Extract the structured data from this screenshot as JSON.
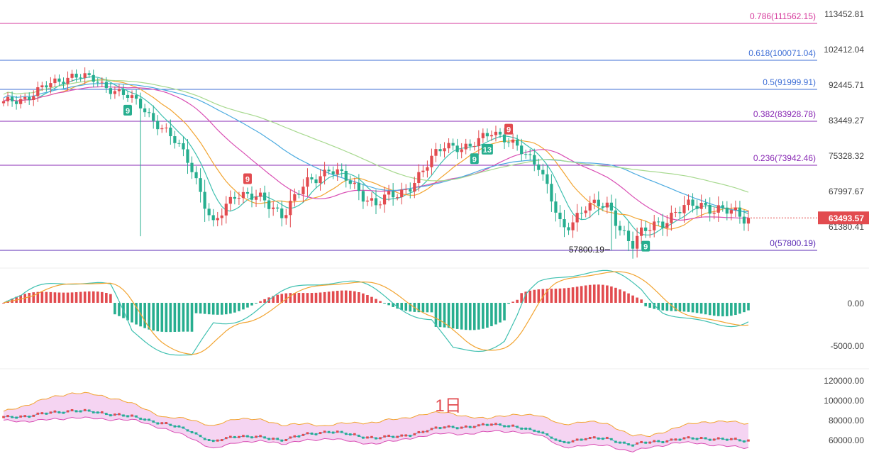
{
  "chart_data": [
    {
      "type": "candlestick",
      "panel": "price",
      "y_axis_ticks": [
        "113452.81",
        "102412.04",
        "92445.71",
        "83449.27",
        "75328.32",
        "67997.67",
        "61380.41"
      ],
      "current_price": "63493.57",
      "fib_levels": [
        {
          "label": "0.786(111562.15)",
          "value": 111562.15,
          "color": "#d6399c"
        },
        {
          "label": "0.618(100071.04)",
          "value": 100071.04,
          "color": "#3f6fd6"
        },
        {
          "label": "0.5(91999.91)",
          "value": 91999.91,
          "color": "#3f6fd6"
        },
        {
          "label": "0.382(83928.78)",
          "value": 83928.78,
          "color": "#8a2bb5"
        },
        {
          "label": "0.236(73942.46)",
          "value": 73942.46,
          "color": "#8a2bb5"
        },
        {
          "label": "0(57800.19)",
          "value": 57800.19,
          "color": "#5b2bb5"
        }
      ],
      "low_annotation": "57800.19",
      "markers": [
        {
          "text": "9",
          "kind": "sell",
          "index": 57
        },
        {
          "text": "9",
          "kind": "sell",
          "index": 118
        },
        {
          "text": "9",
          "kind": "buy",
          "index": 29
        },
        {
          "text": "9",
          "kind": "buy",
          "index": 110
        },
        {
          "text": "13",
          "kind": "buy",
          "index": 113
        },
        {
          "text": "9",
          "kind": "buy",
          "index": 150
        }
      ],
      "candles_ohlc_sample": [
        [
          87500,
          88800,
          86900,
          88200
        ],
        [
          88200,
          90500,
          87800,
          90100
        ],
        [
          90100,
          93800,
          89800,
          93200
        ],
        [
          93200,
          96800,
          92800,
          96200
        ],
        [
          96200,
          97400,
          93500,
          94000
        ],
        [
          94000,
          94500,
          90800,
          91300
        ],
        [
          91300,
          92000,
          86500,
          87200
        ],
        [
          87200,
          88000,
          80500,
          81200
        ],
        [
          81200,
          82000,
          74000,
          74800
        ],
        [
          74800,
          76000,
          60200,
          61500
        ],
        [
          61500,
          69500,
          61000,
          68800
        ],
        [
          68800,
          70000,
          66000,
          66800
        ],
        [
          66800,
          68500,
          63800,
          64500
        ],
        [
          64500,
          70500,
          64000,
          69800
        ],
        [
          69800,
          74500,
          69000,
          73600
        ],
        [
          73600,
          75000,
          69000,
          69600
        ],
        [
          69600,
          70200,
          65500,
          66200
        ],
        [
          66200,
          68500,
          65000,
          68000
        ],
        [
          68000,
          73000,
          67500,
          72400
        ],
        [
          72400,
          79800,
          72000,
          79000
        ],
        [
          79000,
          80200,
          76500,
          77200
        ],
        [
          77200,
          82800,
          76800,
          82200
        ],
        [
          82200,
          83200,
          77000,
          77600
        ],
        [
          77600,
          78200,
          73800,
          74400
        ],
        [
          74400,
          75000,
          59500,
          60500
        ],
        [
          60500,
          67000,
          59800,
          66200
        ],
        [
          66200,
          68500,
          64800,
          65100
        ],
        [
          65100,
          66000,
          58000,
          58900
        ],
        [
          58900,
          62800,
          57800,
          62300
        ],
        [
          62300,
          65500,
          61800,
          64800
        ],
        [
          64800,
          67000,
          63800,
          66200
        ],
        [
          66200,
          66800,
          63800,
          64600
        ],
        [
          64600,
          65800,
          63400,
          63493.57
        ]
      ]
    },
    {
      "type": "macd",
      "panel": "macd",
      "y_axis_ticks": [
        "0.00",
        "-5000.00"
      ],
      "ylim": [
        -6500,
        3000
      ]
    },
    {
      "type": "line",
      "panel": "volume-band",
      "title": "1日",
      "y_axis_ticks": [
        "120000.00",
        "100000.00",
        "80000.00",
        "60000.00"
      ],
      "ylim": [
        55000,
        125000
      ]
    }
  ],
  "colors": {
    "up": "#e24b4f",
    "down": "#27ae8f",
    "ma_teal": "#3fc0b0",
    "ma_orange": "#f2a431",
    "ma_pink": "#d94fb4",
    "ma_blue": "#4cabe0",
    "ma_green": "#a7d98f",
    "price_tag": "#e24b4f",
    "macd_dif": "#3fc0b0",
    "macd_dea": "#f2a431",
    "band_fill": "#f3c9ef",
    "band_upper": "#f2a431",
    "band_lower": "#d94fb4"
  }
}
